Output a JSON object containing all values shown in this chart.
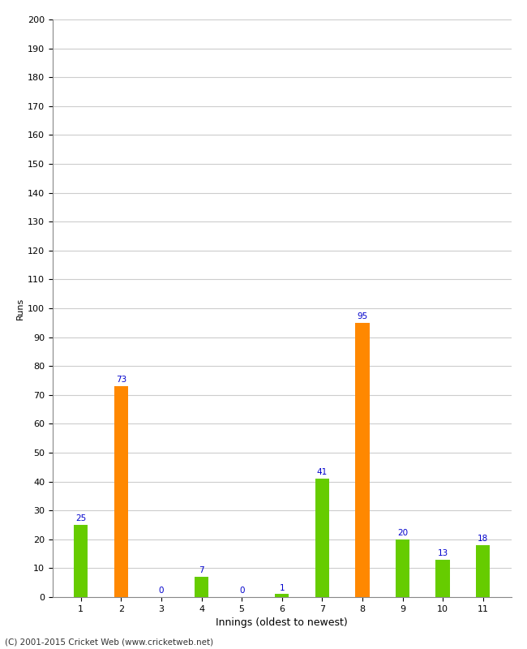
{
  "innings": [
    1,
    2,
    3,
    4,
    5,
    6,
    7,
    8,
    9,
    10,
    11
  ],
  "values": [
    25,
    73,
    0,
    7,
    0,
    1,
    41,
    95,
    20,
    13,
    18
  ],
  "colors": [
    "#66cc00",
    "#ff8800",
    "#66cc00",
    "#66cc00",
    "#66cc00",
    "#66cc00",
    "#66cc00",
    "#ff8800",
    "#66cc00",
    "#66cc00",
    "#66cc00"
  ],
  "xlabel": "Innings (oldest to newest)",
  "ylabel": "Runs",
  "ylim": [
    0,
    200
  ],
  "yticks": [
    0,
    10,
    20,
    30,
    40,
    50,
    60,
    70,
    80,
    90,
    100,
    110,
    120,
    130,
    140,
    150,
    160,
    170,
    180,
    190,
    200
  ],
  "label_color": "#0000cc",
  "label_fontsize": 7.5,
  "bar_width": 0.35,
  "background_color": "#ffffff",
  "grid_color": "#cccccc",
  "footer": "(C) 2001-2015 Cricket Web (www.cricketweb.net)"
}
